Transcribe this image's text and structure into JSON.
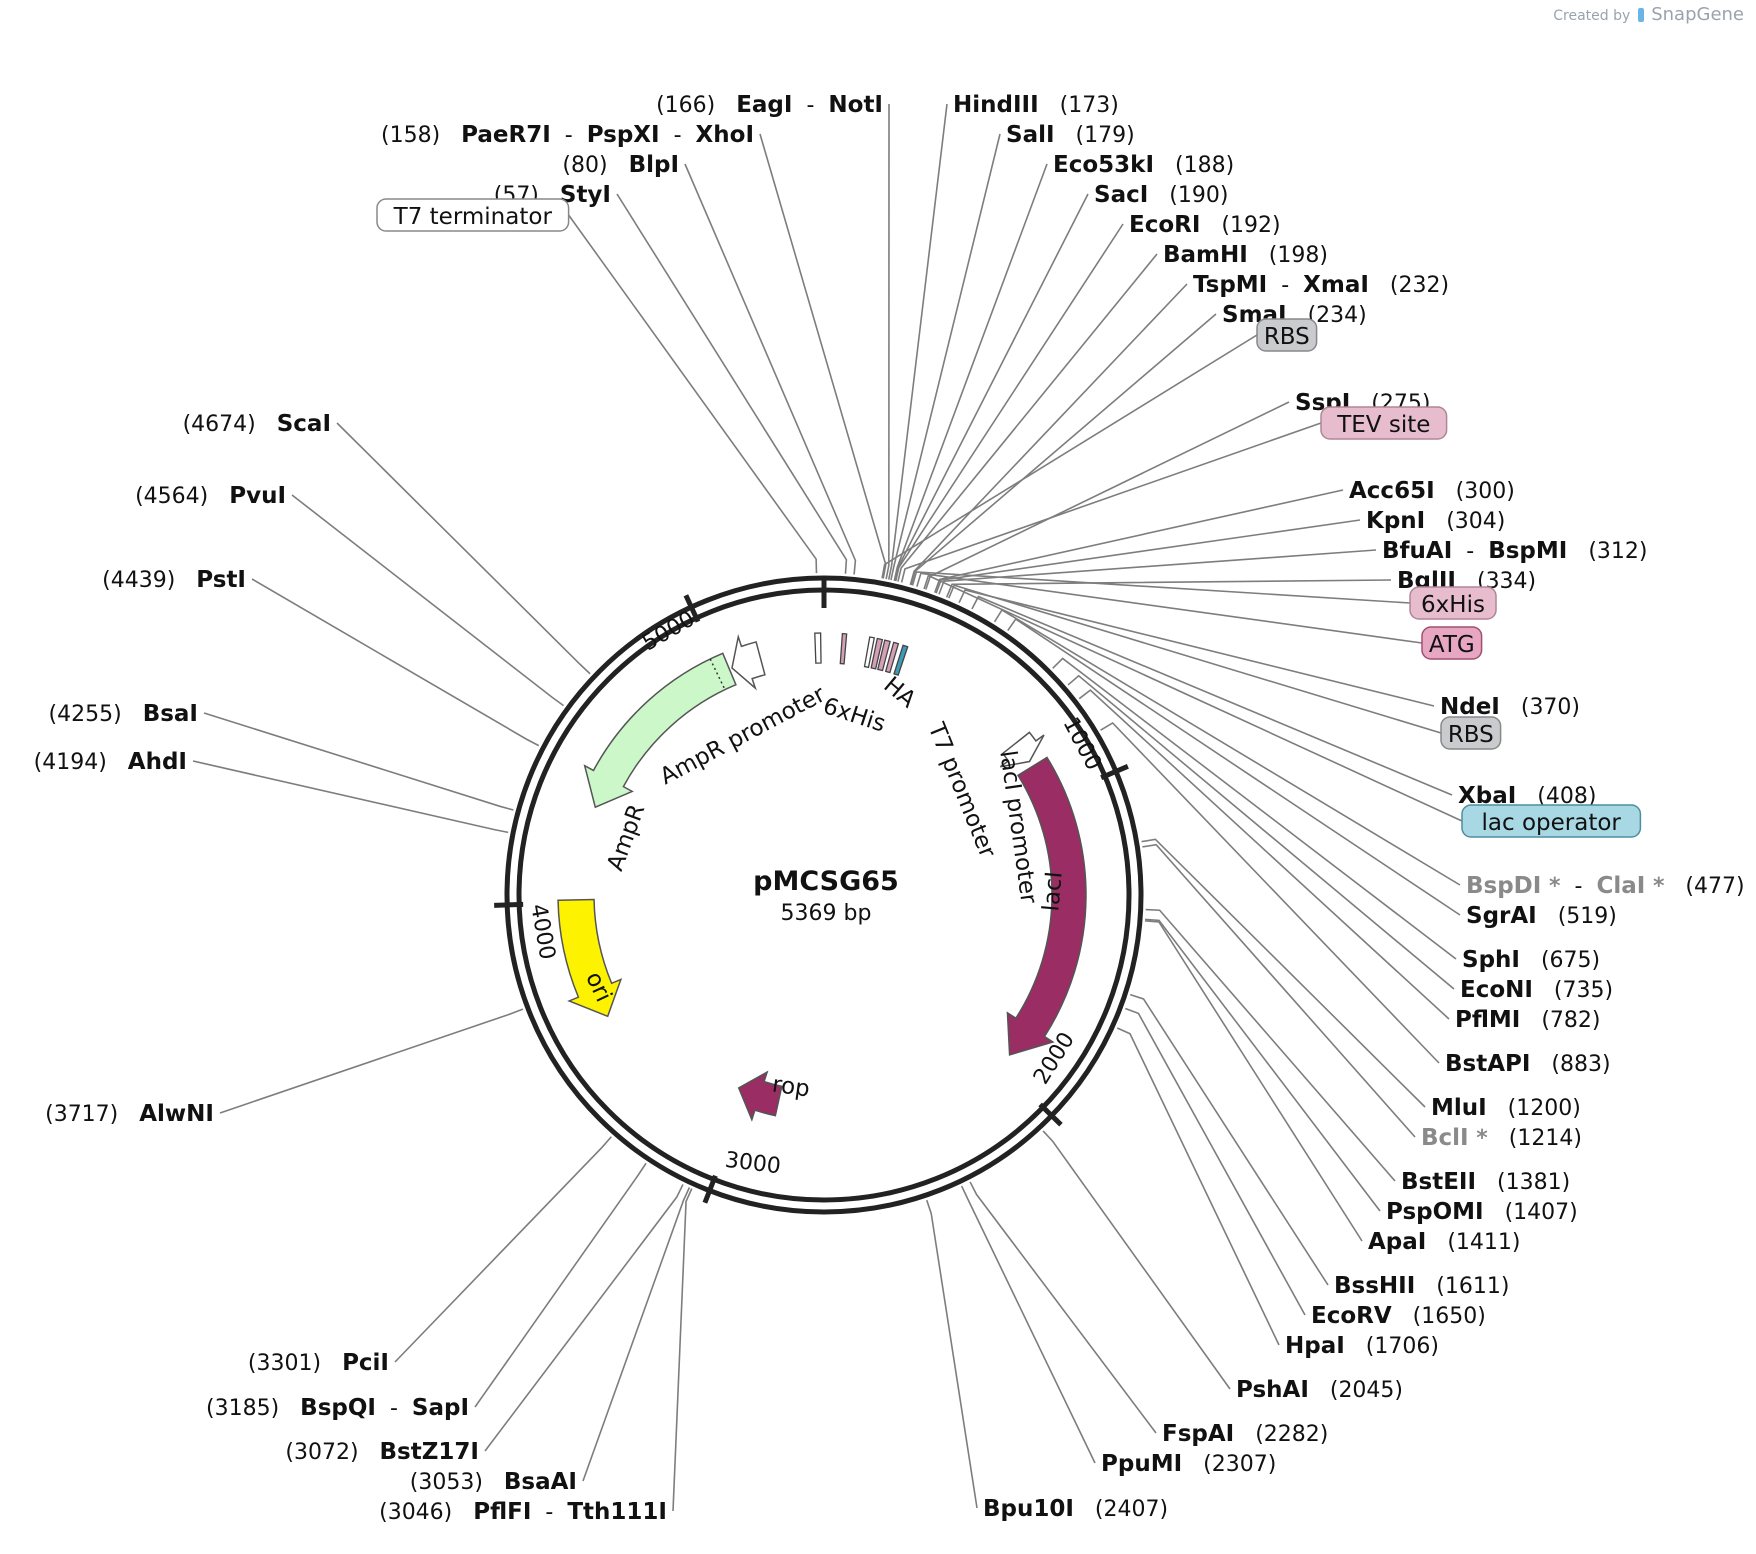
{
  "credit": {
    "prefix": "Created by",
    "brand": "SnapGene"
  },
  "plasmid": {
    "name": "pMCSG65",
    "length_label": "5369 bp",
    "length": 5369
  },
  "ticks": [
    "1000",
    "2000",
    "3000",
    "4000",
    "5000"
  ],
  "features": [
    {
      "name": "AmpR",
      "color": "#ccf7c9",
      "stroke": "#555555",
      "text_color": "#111111"
    },
    {
      "name": "AmpR promoter",
      "color": "#ffffff",
      "stroke": "#555555"
    },
    {
      "name": "ori",
      "color": "#fdf300",
      "stroke": "#555555",
      "text_color": "#111111"
    },
    {
      "name": "rop",
      "color": "#9a2d64",
      "stroke": "#555555"
    },
    {
      "name": "lacI",
      "color": "#9a2d64",
      "stroke": "#555555",
      "text_color": "#ffffff"
    },
    {
      "name": "lacI promoter",
      "color": "#ffffff",
      "stroke": "#555555"
    },
    {
      "name": "T7 promoter",
      "color": "#ffffff"
    },
    {
      "name": "HA",
      "color": "#d69fb8"
    },
    {
      "name": "6xHis",
      "color": "#d69fb8"
    }
  ],
  "boxed_labels": [
    {
      "id": "t7-terminator",
      "text": "T7 terminator",
      "color": "#ffffff",
      "border": "#888888"
    },
    {
      "id": "rbs-1",
      "text": "RBS",
      "color": "#c9cbcf",
      "border": "#888888"
    },
    {
      "id": "tev-site",
      "text": "TEV site",
      "color": "#e7bccd",
      "border": "#b08597"
    },
    {
      "id": "6xhis",
      "text": "6xHis",
      "color": "#e7bccd",
      "border": "#b08597"
    },
    {
      "id": "atg",
      "text": "ATG",
      "color": "#e7a7c2",
      "border": "#a0506f"
    },
    {
      "id": "rbs-2",
      "text": "RBS",
      "color": "#c9cbcf",
      "border": "#888888"
    },
    {
      "id": "lac-operator",
      "text": "lac operator",
      "color": "#a7d8e3",
      "border": "#4e8ea0"
    }
  ],
  "sites": [
    {
      "id": "eagi-noti",
      "enzymes": [
        "EagI",
        "NotI"
      ],
      "pos": "(166)",
      "pos_first": true
    },
    {
      "id": "paer7i-pspxi-xhoi",
      "enzymes": [
        "PaeR7I",
        "PspXI",
        "XhoI"
      ],
      "pos": "(158)",
      "pos_first": true
    },
    {
      "id": "blpi",
      "enzymes": [
        "BlpI"
      ],
      "pos": "(80)",
      "pos_first": true
    },
    {
      "id": "styi",
      "enzymes": [
        "StyI"
      ],
      "pos": "(57)",
      "pos_first": true
    },
    {
      "id": "hindiii",
      "enzymes": [
        "HindIII"
      ],
      "pos": "(173)"
    },
    {
      "id": "sali",
      "enzymes": [
        "SalI"
      ],
      "pos": "(179)"
    },
    {
      "id": "eco53ki",
      "enzymes": [
        "Eco53kI"
      ],
      "pos": "(188)"
    },
    {
      "id": "saci",
      "enzymes": [
        "SacI"
      ],
      "pos": "(190)"
    },
    {
      "id": "ecori",
      "enzymes": [
        "EcoRI"
      ],
      "pos": "(192)"
    },
    {
      "id": "bamhi",
      "enzymes": [
        "BamHI"
      ],
      "pos": "(198)"
    },
    {
      "id": "tspmi-xmai",
      "enzymes": [
        "TspMI",
        "XmaI"
      ],
      "pos": "(232)"
    },
    {
      "id": "smai",
      "enzymes": [
        "SmaI"
      ],
      "pos": "(234)"
    },
    {
      "id": "sspi",
      "enzymes": [
        "SspI"
      ],
      "pos": "(275)"
    },
    {
      "id": "acc65i",
      "enzymes": [
        "Acc65I"
      ],
      "pos": "(300)"
    },
    {
      "id": "kpni",
      "enzymes": [
        "KpnI"
      ],
      "pos": "(304)"
    },
    {
      "id": "bfuai-bspmi",
      "enzymes": [
        "BfuAI",
        "BspMI"
      ],
      "pos": "(312)"
    },
    {
      "id": "bglii",
      "enzymes": [
        "BglII"
      ],
      "pos": "(334)"
    },
    {
      "id": "ndei",
      "enzymes": [
        "NdeI"
      ],
      "pos": "(370)"
    },
    {
      "id": "xbai",
      "enzymes": [
        "XbaI"
      ],
      "pos": "(408)"
    },
    {
      "id": "bspdi-clai",
      "enzymes": [
        "BspDI",
        "ClaI"
      ],
      "pos": "(477)",
      "grey": true,
      "star": "*"
    },
    {
      "id": "sgrai",
      "enzymes": [
        "SgrAI"
      ],
      "pos": "(519)"
    },
    {
      "id": "sphi",
      "enzymes": [
        "SphI"
      ],
      "pos": "(675)"
    },
    {
      "id": "econi",
      "enzymes": [
        "EcoNI"
      ],
      "pos": "(735)"
    },
    {
      "id": "pflmi",
      "enzymes": [
        "PflMI"
      ],
      "pos": "(782)"
    },
    {
      "id": "bstapi",
      "enzymes": [
        "BstAPI"
      ],
      "pos": "(883)"
    },
    {
      "id": "mlui",
      "enzymes": [
        "MluI"
      ],
      "pos": "(1200)"
    },
    {
      "id": "bcli",
      "enzymes": [
        "BclI"
      ],
      "pos": "(1214)",
      "grey": true,
      "star": "*"
    },
    {
      "id": "bsteii",
      "enzymes": [
        "BstEII"
      ],
      "pos": "(1381)"
    },
    {
      "id": "pspomi",
      "enzymes": [
        "PspOMI"
      ],
      "pos": "(1407)"
    },
    {
      "id": "apai",
      "enzymes": [
        "ApaI"
      ],
      "pos": "(1411)"
    },
    {
      "id": "bsshii",
      "enzymes": [
        "BssHII"
      ],
      "pos": "(1611)"
    },
    {
      "id": "ecorv",
      "enzymes": [
        "EcoRV"
      ],
      "pos": "(1650)"
    },
    {
      "id": "hpai",
      "enzymes": [
        "HpaI"
      ],
      "pos": "(1706)"
    },
    {
      "id": "pshai",
      "enzymes": [
        "PshAI"
      ],
      "pos": "(2045)"
    },
    {
      "id": "fspai",
      "enzymes": [
        "FspAI"
      ],
      "pos": "(2282)"
    },
    {
      "id": "ppumi",
      "enzymes": [
        "PpuMI"
      ],
      "pos": "(2307)"
    },
    {
      "id": "bpu10i",
      "enzymes": [
        "Bpu10I"
      ],
      "pos": "(2407)"
    },
    {
      "id": "scai",
      "enzymes": [
        "ScaI"
      ],
      "pos": "(4674)",
      "pos_first": true
    },
    {
      "id": "pvui",
      "enzymes": [
        "PvuI"
      ],
      "pos": "(4564)",
      "pos_first": true
    },
    {
      "id": "psti",
      "enzymes": [
        "PstI"
      ],
      "pos": "(4439)",
      "pos_first": true
    },
    {
      "id": "bsai",
      "enzymes": [
        "BsaI"
      ],
      "pos": "(4255)",
      "pos_first": true
    },
    {
      "id": "ahdi",
      "enzymes": [
        "AhdI"
      ],
      "pos": "(4194)",
      "pos_first": true
    },
    {
      "id": "alwni",
      "enzymes": [
        "AlwNI"
      ],
      "pos": "(3717)",
      "pos_first": true
    },
    {
      "id": "pcii",
      "enzymes": [
        "PciI"
      ],
      "pos": "(3301)",
      "pos_first": true
    },
    {
      "id": "bspqi-sapi",
      "enzymes": [
        "BspQI",
        "SapI"
      ],
      "pos": "(3185)",
      "pos_first": true
    },
    {
      "id": "bstz17i",
      "enzymes": [
        "BstZ17I"
      ],
      "pos": "(3072)",
      "pos_first": true
    },
    {
      "id": "bsaai",
      "enzymes": [
        "BsaAI"
      ],
      "pos": "(3053)",
      "pos_first": true
    },
    {
      "id": "pflfi-tth111i",
      "enzymes": [
        "PflFI",
        "Tth111I"
      ],
      "pos": "(3046)",
      "pos_first": true
    }
  ]
}
